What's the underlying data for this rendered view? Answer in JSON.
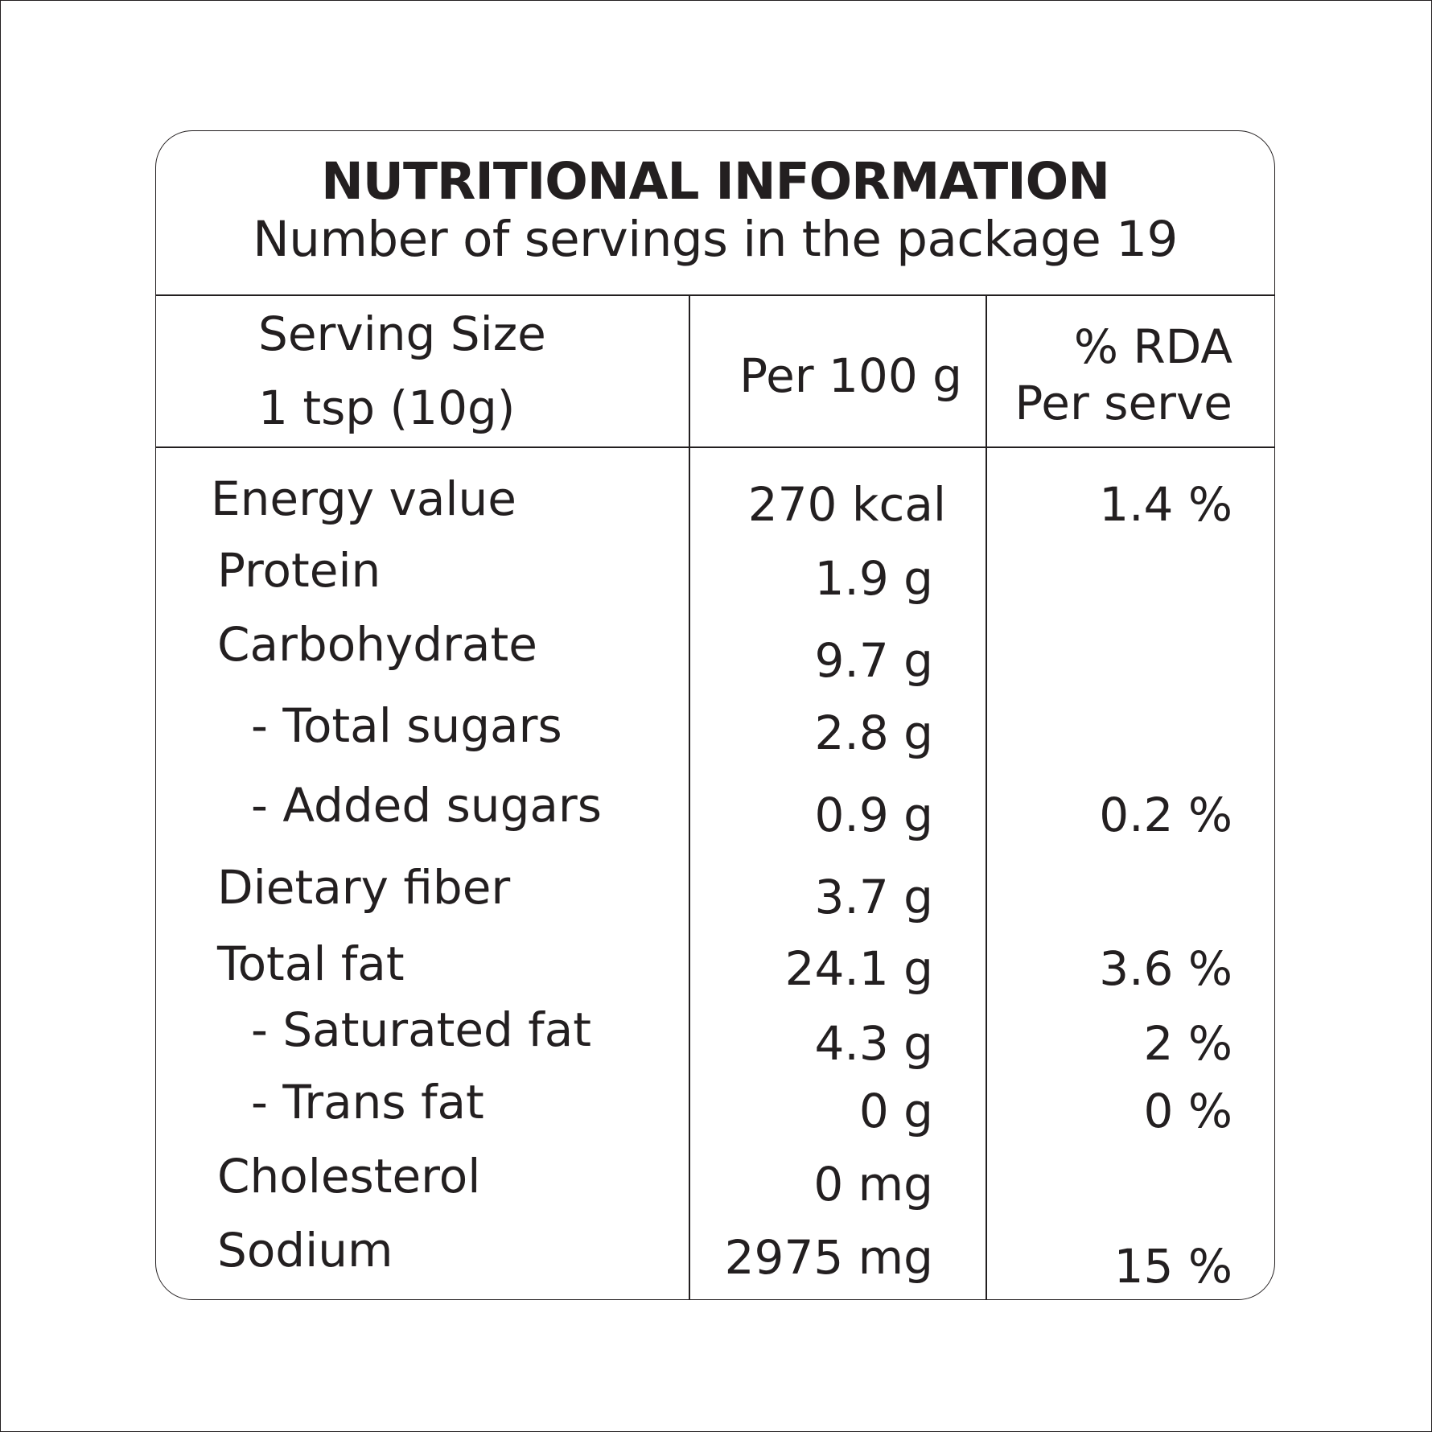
{
  "title": "NUTRITIONAL INFORMATION",
  "servings_line": "Number of servings in the package 19",
  "header": {
    "serving_size_label": "Serving Size",
    "serving_size_value": "1 tsp (10g)",
    "per_100g": "Per 100 g",
    "rda_line1": "% RDA",
    "rda_line2": "Per serve"
  },
  "rows": [
    {
      "name": "Energy value",
      "value": "270 kcal",
      "rda": "1.4 %",
      "indent": false
    },
    {
      "name": "Protein",
      "value": "1.9 g",
      "rda": "",
      "indent": false
    },
    {
      "name": "Carbohydrate",
      "value": "9.7 g",
      "rda": "",
      "indent": false
    },
    {
      "name": "- Total sugars",
      "value": "2.8 g",
      "rda": "",
      "indent": true
    },
    {
      "name": "- Added sugars",
      "value": "0.9 g",
      "rda": "0.2 %",
      "indent": true
    },
    {
      "name": "Dietary fiber",
      "value": "3.7 g",
      "rda": "",
      "indent": false
    },
    {
      "name": "Total fat",
      "value": "24.1 g",
      "rda": "3.6 %",
      "indent": false
    },
    {
      "name": "- Saturated fat",
      "value": "4.3 g",
      "rda": "2 %",
      "indent": true
    },
    {
      "name": "- Trans fat",
      "value": "0 g",
      "rda": "0 %",
      "indent": true
    },
    {
      "name": "Cholesterol",
      "value": "0 mg",
      "rda": "",
      "indent": false
    },
    {
      "name": "Sodium",
      "value": "2975 mg",
      "rda": "15 %",
      "indent": false
    }
  ]
}
